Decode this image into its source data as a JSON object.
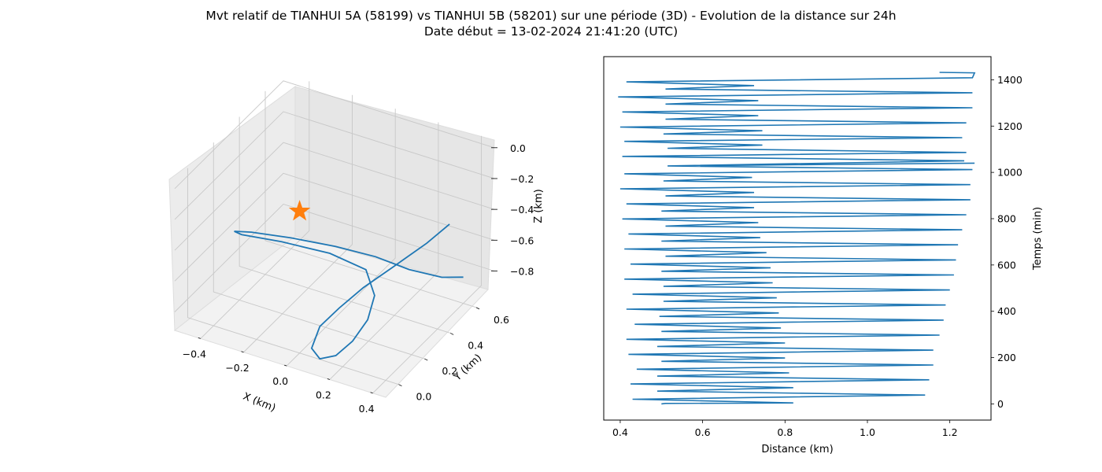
{
  "title_line1": "Mvt relatif de TIANHUI 5A (58199) vs TIANHUI 5B (58201) sur une période (3D) - Evolution de la distance sur 24h",
  "title_line2": "Date début = 13-02-2024 21:41:20 (UTC)",
  "colors": {
    "line": "#1f77b4",
    "star": "#ff7f0e",
    "pane_left": "#ececec",
    "pane_right": "#e6e6e6",
    "pane_floor": "#f2f2f2",
    "grid": "#c8c8c8"
  },
  "chart_data": [
    {
      "type": "line3d",
      "xlabel": "X (km)",
      "ylabel": "Y (km)",
      "zlabel": "Z (km)",
      "x_ticks": [
        "−0.4",
        "−0.2",
        "0.0",
        "0.2",
        "0.4"
      ],
      "y_ticks": [
        "0.0",
        "0.2",
        "0.4",
        "0.6"
      ],
      "z_ticks": [
        "0.0",
        "−0.2",
        "−0.4",
        "−0.6",
        "−0.8"
      ],
      "grid": true,
      "marker": {
        "shape": "star",
        "x": 0.0,
        "y": 0.0,
        "z": 0.0
      },
      "trajectory": [
        [
          0.4,
          0.6,
          -0.75
        ],
        [
          0.33,
          0.55,
          -0.74
        ],
        [
          0.22,
          0.48,
          -0.68
        ],
        [
          0.1,
          0.42,
          -0.6
        ],
        [
          -0.05,
          0.36,
          -0.55
        ],
        [
          -0.22,
          0.3,
          -0.52
        ],
        [
          -0.38,
          0.26,
          -0.52
        ],
        [
          -0.46,
          0.26,
          -0.55
        ],
        [
          -0.45,
          0.3,
          -0.6
        ],
        [
          -0.3,
          0.36,
          -0.63
        ],
        [
          -0.1,
          0.4,
          -0.65
        ],
        [
          0.08,
          0.38,
          -0.66
        ],
        [
          0.18,
          0.28,
          -0.7
        ],
        [
          0.22,
          0.16,
          -0.74
        ],
        [
          0.21,
          0.06,
          -0.8
        ],
        [
          0.18,
          -0.02,
          -0.84
        ],
        [
          0.13,
          -0.06,
          -0.85
        ],
        [
          0.08,
          -0.04,
          -0.82
        ],
        [
          0.07,
          0.04,
          -0.75
        ],
        [
          0.1,
          0.14,
          -0.7
        ],
        [
          0.14,
          0.26,
          -0.65
        ],
        [
          0.2,
          0.4,
          -0.6
        ],
        [
          0.26,
          0.55,
          -0.55
        ],
        [
          0.3,
          0.66,
          -0.5
        ]
      ]
    },
    {
      "type": "line",
      "xlabel": "Distance (km)",
      "ylabel": "Temps (min)",
      "xlim": [
        0.36,
        1.3
      ],
      "ylim": [
        -70,
        1500
      ],
      "x_ticks": [
        0.4,
        0.6,
        0.8,
        1.0,
        1.2
      ],
      "y_ticks": [
        0,
        200,
        400,
        600,
        800,
        1000,
        1200,
        1400
      ],
      "y_axis_side": "right",
      "points": [
        [
          0.5,
          0
        ],
        [
          0.51,
          2
        ],
        [
          0.82,
          4
        ],
        [
          0.43,
          20
        ],
        [
          1.14,
          38
        ],
        [
          0.49,
          55
        ],
        [
          0.82,
          70
        ],
        [
          0.425,
          86
        ],
        [
          1.15,
          104
        ],
        [
          0.49,
          120
        ],
        [
          0.81,
          134
        ],
        [
          0.44,
          150
        ],
        [
          1.16,
          168
        ],
        [
          0.5,
          184
        ],
        [
          0.8,
          198
        ],
        [
          0.42,
          214
        ],
        [
          1.16,
          232
        ],
        [
          0.49,
          248
        ],
        [
          0.8,
          263
        ],
        [
          0.415,
          279
        ],
        [
          1.175,
          297
        ],
        [
          0.5,
          313
        ],
        [
          0.79,
          328
        ],
        [
          0.435,
          344
        ],
        [
          1.185,
          362
        ],
        [
          0.495,
          378
        ],
        [
          0.785,
          393
        ],
        [
          0.415,
          409
        ],
        [
          1.19,
          427
        ],
        [
          0.505,
          443
        ],
        [
          0.78,
          458
        ],
        [
          0.43,
          474
        ],
        [
          1.2,
          492
        ],
        [
          0.505,
          508
        ],
        [
          0.77,
          523
        ],
        [
          0.41,
          539
        ],
        [
          1.21,
          557
        ],
        [
          0.5,
          573
        ],
        [
          0.765,
          588
        ],
        [
          0.425,
          604
        ],
        [
          1.215,
          622
        ],
        [
          0.51,
          638
        ],
        [
          0.755,
          653
        ],
        [
          0.41,
          669
        ],
        [
          1.22,
          687
        ],
        [
          0.5,
          703
        ],
        [
          0.74,
          718
        ],
        [
          0.42,
          734
        ],
        [
          1.23,
          752
        ],
        [
          0.51,
          768
        ],
        [
          0.735,
          783
        ],
        [
          0.405,
          799
        ],
        [
          1.24,
          817
        ],
        [
          0.5,
          833
        ],
        [
          0.725,
          848
        ],
        [
          0.415,
          864
        ],
        [
          1.25,
          882
        ],
        [
          0.51,
          898
        ],
        [
          0.725,
          913
        ],
        [
          0.4,
          929
        ],
        [
          1.25,
          947
        ],
        [
          0.505,
          963
        ],
        [
          0.72,
          978
        ],
        [
          0.41,
          994
        ],
        [
          1.255,
          1012
        ],
        [
          0.515,
          1028
        ],
        [
          1.26,
          1040
        ]
      ]
    }
  ]
}
